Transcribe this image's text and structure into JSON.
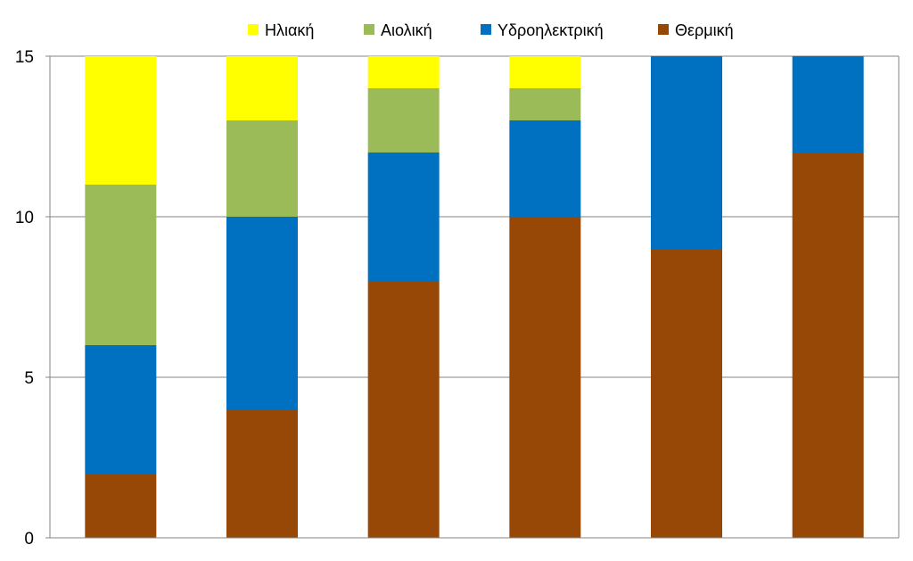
{
  "chart_data": {
    "type": "bar",
    "stacked": true,
    "categories": [
      "",
      "",
      "",
      "",
      "",
      ""
    ],
    "title": "",
    "xlabel": "",
    "ylabel": "",
    "ylim": [
      0,
      15
    ],
    "yticks": [
      0,
      5,
      10,
      15
    ],
    "grid": true,
    "legend_position": "top",
    "series": [
      {
        "name": "Θερμική",
        "color": "#974706",
        "values": [
          2,
          4,
          8,
          10,
          9,
          12
        ]
      },
      {
        "name": "Υδροηλεκτρική",
        "color": "#0070C0",
        "values": [
          4,
          6,
          4,
          3,
          6,
          3
        ]
      },
      {
        "name": "Αιολική",
        "color": "#9BBB59",
        "values": [
          5,
          3,
          2,
          1,
          0,
          0
        ]
      },
      {
        "name": "Ηλιακή",
        "color": "#FFFF00",
        "values": [
          4,
          2,
          1,
          1,
          0,
          0
        ]
      }
    ],
    "legend_order": [
      3,
      2,
      1,
      0
    ]
  }
}
